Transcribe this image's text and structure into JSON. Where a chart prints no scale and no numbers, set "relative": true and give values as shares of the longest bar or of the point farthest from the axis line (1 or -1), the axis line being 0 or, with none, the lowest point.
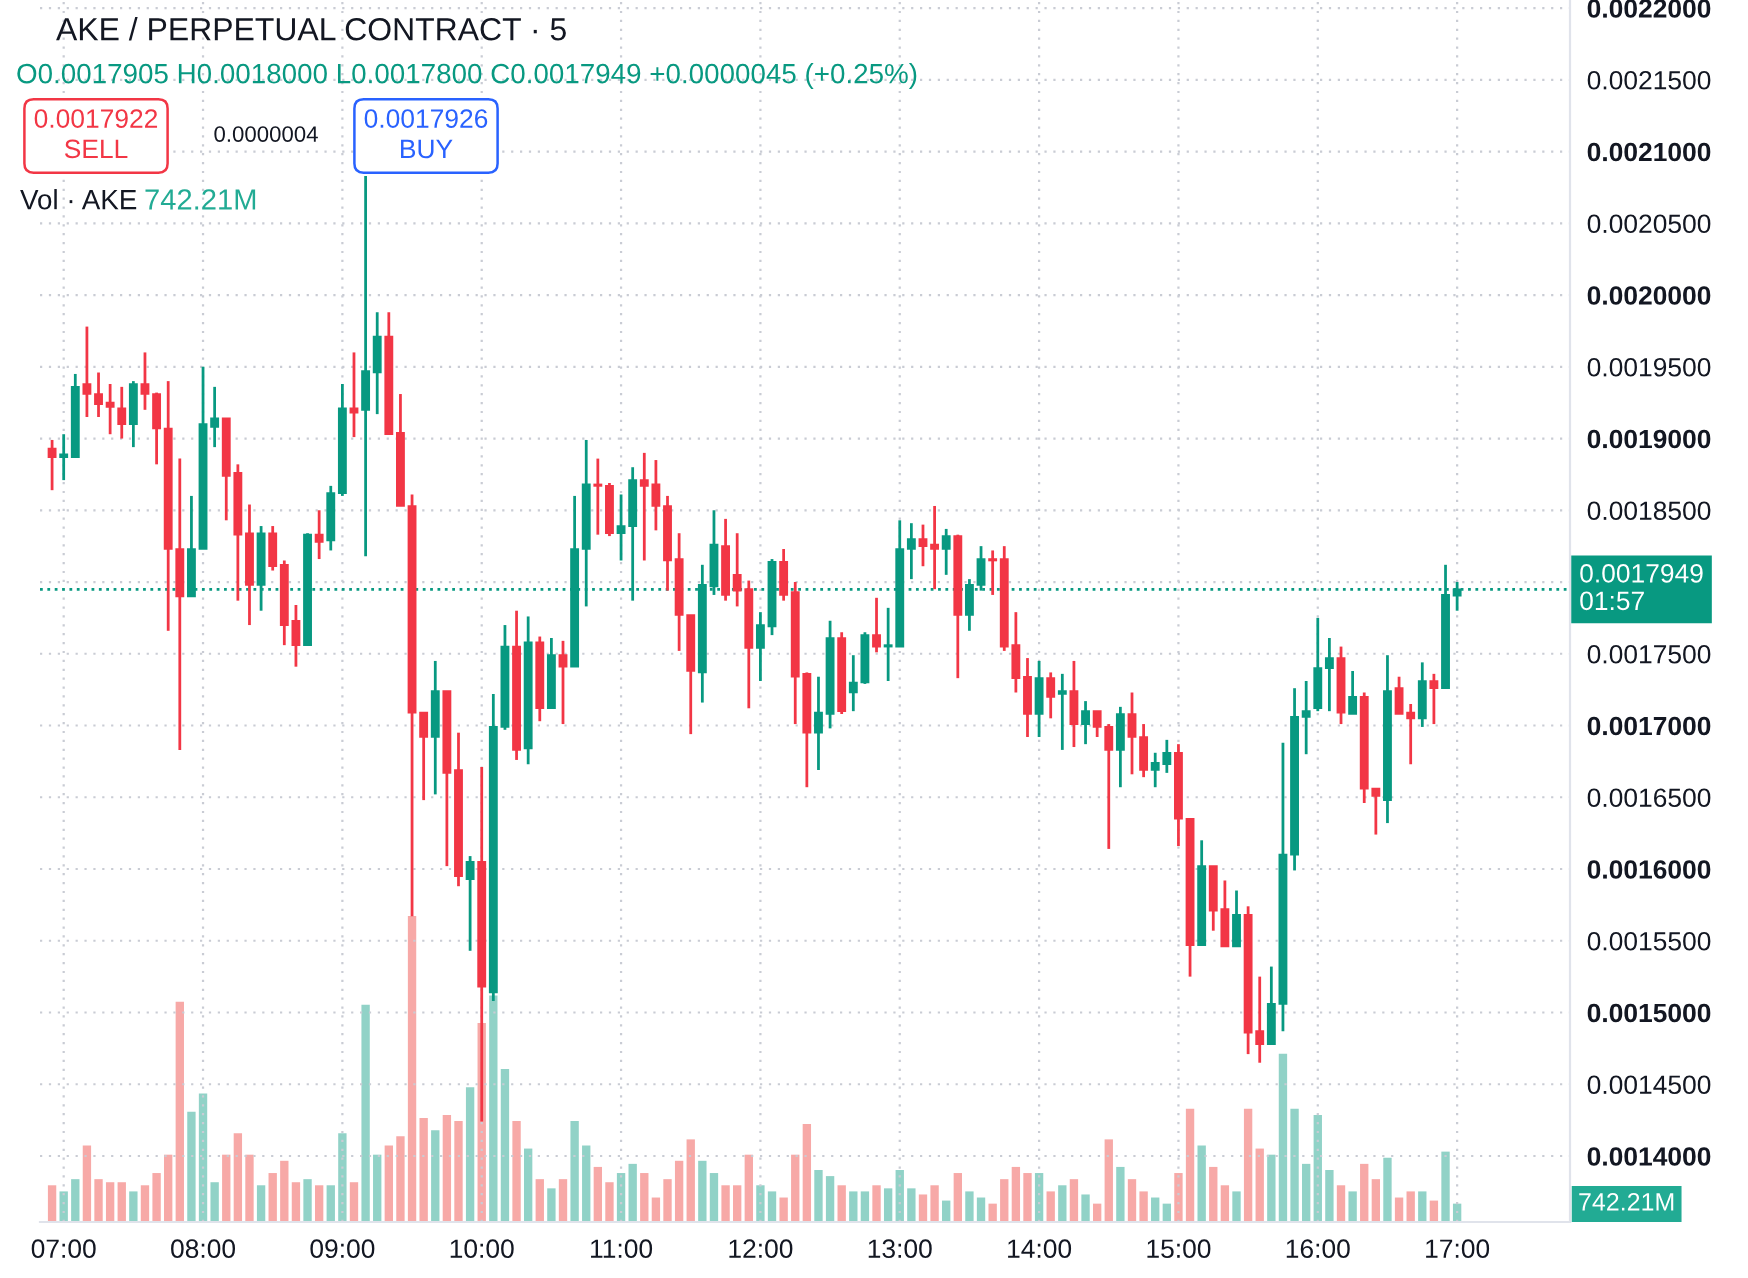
{
  "chart_data": [
    {
      "type": "candlestick",
      "title": "AKE / PERPETUAL CONTRACT · 5",
      "subtitle": "O0.0017905 H0.0018000 L0.0017800 C0.0017949 +0.0000045 (+0.25%)",
      "annotations": [
        "0.0017922\nSELL",
        "0.0000004",
        "0.0017926\nBUY"
      ],
      "x": [
        6.9167,
        7,
        7.0833,
        7.1667,
        7.25,
        7.3333,
        7.4167,
        7.5,
        7.5833,
        7.6667,
        7.75,
        7.8333,
        7.9167,
        8,
        8.0833,
        8.1667,
        8.25,
        8.3333,
        8.4167,
        8.5,
        8.5833,
        8.6667,
        8.75,
        8.8333,
        8.9167,
        9,
        9.0833,
        9.1667,
        9.25,
        9.3333,
        9.4167,
        9.5,
        9.5833,
        9.6667,
        9.75,
        9.8333,
        9.9167,
        10,
        10.0833,
        10.1667,
        10.25,
        10.3333,
        10.4167,
        10.5,
        10.5833,
        10.6667,
        10.75,
        10.8333,
        10.9167,
        11,
        11.0833,
        11.1667,
        11.25,
        11.3333,
        11.4167,
        11.5,
        11.5833,
        11.6667,
        11.75,
        11.8333,
        11.9167,
        12,
        12.0833,
        12.1667,
        12.25,
        12.3333,
        12.4167,
        12.5,
        12.5833,
        12.6667,
        12.75,
        12.8333,
        12.9167,
        13,
        13.0833,
        13.1667,
        13.25,
        13.3333,
        13.4167,
        13.5,
        13.5833,
        13.6667,
        13.75,
        13.8333,
        13.9167,
        14,
        14.0833,
        14.1667,
        14.25,
        14.3333,
        14.4167,
        14.5,
        14.5833,
        14.6667,
        14.75,
        14.8333,
        14.9167,
        15,
        15.0833,
        15.1667,
        15.25,
        15.3333,
        15.4167,
        15.5,
        15.5833,
        15.6667,
        15.75,
        15.8333,
        15.9167,
        16,
        16.0833,
        16.1667,
        16.25,
        16.3333,
        16.4167,
        16.5,
        16.5833,
        16.6667,
        16.75,
        16.8333,
        16.9167,
        17
      ],
      "ohlc": [
        [
          0.001893,
          0.001899,
          0.001864,
          0.001887
        ],
        [
          0.001887,
          0.001903,
          0.001871,
          0.001889
        ],
        [
          0.001887,
          0.001945,
          0.001887,
          0.001936
        ],
        [
          0.001938,
          0.001978,
          0.001915,
          0.001931
        ],
        [
          0.001931,
          0.001946,
          0.001915,
          0.001924
        ],
        [
          0.001925,
          0.001938,
          0.001903,
          0.001922
        ],
        [
          0.001921,
          0.001936,
          0.0019,
          0.00191
        ],
        [
          0.00191,
          0.00194,
          0.001894,
          0.001938
        ],
        [
          0.001938,
          0.00196,
          0.00192,
          0.001931
        ],
        [
          0.001931,
          0.001932,
          0.001882,
          0.001907
        ],
        [
          0.001907,
          0.00194,
          0.001766,
          0.001823
        ],
        [
          0.001823,
          0.001886,
          0.001683,
          0.00179
        ],
        [
          0.00179,
          0.00186,
          0.00179,
          0.001823
        ],
        [
          0.001823,
          0.00195,
          0.001823,
          0.00191
        ],
        [
          0.001908,
          0.001936,
          0.001894,
          0.001914
        ],
        [
          0.001914,
          0.001914,
          0.001843,
          0.001874
        ],
        [
          0.001876,
          0.001882,
          0.001787,
          0.001833
        ],
        [
          0.001834,
          0.001854,
          0.00177,
          0.001798
        ],
        [
          0.001798,
          0.001839,
          0.00178,
          0.001834
        ],
        [
          0.001834,
          0.001839,
          0.001808,
          0.001811
        ],
        [
          0.001812,
          0.001815,
          0.001756,
          0.00177
        ],
        [
          0.001773,
          0.001784,
          0.001741,
          0.001756
        ],
        [
          0.001756,
          0.001834,
          0.001756,
          0.001833
        ],
        [
          0.001833,
          0.00185,
          0.001816,
          0.001828
        ],
        [
          0.001829,
          0.001867,
          0.001822,
          0.001862
        ],
        [
          0.001862,
          0.001938,
          0.00186,
          0.001921
        ],
        [
          0.001921,
          0.00196,
          0.001901,
          0.001918
        ],
        [
          0.00192,
          0.002083,
          0.001818,
          0.001947
        ],
        [
          0.001946,
          0.001988,
          0.001917,
          0.001971
        ],
        [
          0.001971,
          0.001988,
          0.001903,
          0.001903
        ],
        [
          0.001904,
          0.001931,
          0.001853,
          0.001853
        ],
        [
          0.001853,
          0.001861,
          0.001567,
          0.001709
        ],
        [
          0.001709,
          0.001709,
          0.001648,
          0.001692
        ],
        [
          0.001692,
          0.001745,
          0.001652,
          0.001724
        ],
        [
          0.001724,
          0.001724,
          0.001602,
          0.001667
        ],
        [
          0.001669,
          0.001695,
          0.001588,
          0.001595
        ],
        [
          0.001593,
          0.001609,
          0.001543,
          0.001605
        ],
        [
          0.001605,
          0.001671,
          0.001424,
          0.001518
        ],
        [
          0.001514,
          0.001722,
          0.001508,
          0.001699
        ],
        [
          0.001699,
          0.00177,
          0.001697,
          0.001755
        ],
        [
          0.001755,
          0.00178,
          0.001676,
          0.001683
        ],
        [
          0.001684,
          0.001776,
          0.001673,
          0.001758
        ],
        [
          0.001758,
          0.001762,
          0.001703,
          0.001712
        ],
        [
          0.001712,
          0.001761,
          0.001712,
          0.001749
        ],
        [
          0.001749,
          0.001759,
          0.001701,
          0.001741
        ],
        [
          0.001741,
          0.00186,
          0.001741,
          0.001823
        ],
        [
          0.001823,
          0.001899,
          0.001783,
          0.001868
        ],
        [
          0.001868,
          0.001886,
          0.001833,
          0.001867
        ],
        [
          0.001867,
          0.001869,
          0.001832,
          0.001834
        ],
        [
          0.001834,
          0.001861,
          0.001815,
          0.001839
        ],
        [
          0.001839,
          0.00188,
          0.001787,
          0.001871
        ],
        [
          0.001871,
          0.00189,
          0.001815,
          0.001867
        ],
        [
          0.001868,
          0.001885,
          0.001836,
          0.001853
        ],
        [
          0.001853,
          0.00186,
          0.001794,
          0.001815
        ],
        [
          0.001816,
          0.001834,
          0.001752,
          0.001777
        ],
        [
          0.001777,
          0.001777,
          0.001694,
          0.001738
        ],
        [
          0.001737,
          0.001812,
          0.001716,
          0.001798
        ],
        [
          0.001797,
          0.00185,
          0.001791,
          0.001826
        ],
        [
          0.001825,
          0.001844,
          0.001787,
          0.001791
        ],
        [
          0.001805,
          0.001834,
          0.001783,
          0.001794
        ],
        [
          0.001795,
          0.001801,
          0.001712,
          0.001754
        ],
        [
          0.001754,
          0.001779,
          0.001731,
          0.00177
        ],
        [
          0.001769,
          0.001816,
          0.001763,
          0.001814
        ],
        [
          0.001814,
          0.001823,
          0.001787,
          0.001791
        ],
        [
          0.001793,
          0.0018,
          0.001701,
          0.001734
        ],
        [
          0.001736,
          0.001737,
          0.001657,
          0.001695
        ],
        [
          0.001695,
          0.001734,
          0.001669,
          0.001709
        ],
        [
          0.001708,
          0.001773,
          0.001698,
          0.001761
        ],
        [
          0.001761,
          0.001765,
          0.001708,
          0.00171
        ],
        [
          0.001723,
          0.001749,
          0.00171,
          0.00173
        ],
        [
          0.00173,
          0.001765,
          0.001729,
          0.001763
        ],
        [
          0.001763,
          0.001789,
          0.001751,
          0.001755
        ],
        [
          0.001755,
          0.001782,
          0.001731,
          0.001756
        ],
        [
          0.001755,
          0.001843,
          0.001755,
          0.001823
        ],
        [
          0.001823,
          0.001841,
          0.001802,
          0.00183
        ],
        [
          0.00183,
          0.00184,
          0.001811,
          0.001825
        ],
        [
          0.001826,
          0.001853,
          0.001795,
          0.001823
        ],
        [
          0.001823,
          0.001837,
          0.001805,
          0.001832
        ],
        [
          0.001832,
          0.001833,
          0.001733,
          0.001777
        ],
        [
          0.001777,
          0.001802,
          0.001766,
          0.001798
        ],
        [
          0.001798,
          0.001825,
          0.001794,
          0.001816
        ],
        [
          0.001816,
          0.001822,
          0.001791,
          0.001815
        ],
        [
          0.001816,
          0.001825,
          0.001752,
          0.001755
        ],
        [
          0.001756,
          0.001779,
          0.001723,
          0.001733
        ],
        [
          0.001734,
          0.001747,
          0.001692,
          0.001708
        ],
        [
          0.001708,
          0.001745,
          0.001692,
          0.001733
        ],
        [
          0.001733,
          0.001737,
          0.001705,
          0.00172
        ],
        [
          0.001722,
          0.001736,
          0.001683,
          0.001724
        ],
        [
          0.001724,
          0.001745,
          0.001685,
          0.001701
        ],
        [
          0.001701,
          0.001717,
          0.001687,
          0.00171
        ],
        [
          0.00171,
          0.00171,
          0.001692,
          0.001699
        ],
        [
          0.001699,
          0.001701,
          0.001614,
          0.001683
        ],
        [
          0.001683,
          0.001713,
          0.001657,
          0.001708
        ],
        [
          0.001708,
          0.001723,
          0.001666,
          0.001692
        ],
        [
          0.001692,
          0.001701,
          0.001664,
          0.001669
        ],
        [
          0.001669,
          0.001681,
          0.001657,
          0.001674
        ],
        [
          0.001673,
          0.00169,
          0.001667,
          0.001681
        ],
        [
          0.001681,
          0.001687,
          0.001616,
          0.001635
        ],
        [
          0.001635,
          0.001635,
          0.001525,
          0.001547
        ],
        [
          0.001547,
          0.00162,
          0.001547,
          0.001602
        ],
        [
          0.001602,
          0.001602,
          0.001557,
          0.001571
        ],
        [
          0.001572,
          0.001592,
          0.001546,
          0.001546
        ],
        [
          0.001546,
          0.001585,
          0.001546,
          0.001568
        ],
        [
          0.001568,
          0.001574,
          0.001471,
          0.001486
        ],
        [
          0.001487,
          0.001525,
          0.001465,
          0.001478
        ],
        [
          0.001478,
          0.001532,
          0.001478,
          0.001506
        ],
        [
          0.001506,
          0.001688,
          0.001487,
          0.00161
        ],
        [
          0.00161,
          0.001726,
          0.001599,
          0.001706
        ],
        [
          0.001706,
          0.001731,
          0.00168,
          0.00171
        ],
        [
          0.001712,
          0.001775,
          0.00171,
          0.00174
        ],
        [
          0.00174,
          0.001761,
          0.00171,
          0.001747
        ],
        [
          0.001747,
          0.001755,
          0.001701,
          0.001709
        ],
        [
          0.001708,
          0.001738,
          0.001708,
          0.00172
        ],
        [
          0.00172,
          0.001723,
          0.001646,
          0.001656
        ],
        [
          0.001656,
          0.001656,
          0.001624,
          0.001651
        ],
        [
          0.001648,
          0.001749,
          0.001632,
          0.001724
        ],
        [
          0.001726,
          0.001734,
          0.001708,
          0.001708
        ],
        [
          0.001709,
          0.001715,
          0.001673,
          0.001705
        ],
        [
          0.001705,
          0.001744,
          0.001699,
          0.001731
        ],
        [
          0.001731,
          0.001736,
          0.001701,
          0.001726
        ],
        [
          0.001726,
          0.001812,
          0.001726,
          0.001791
        ],
        [
          0.0017905,
          0.0018,
          0.00178,
          0.0017949
        ]
      ],
      "colors": [
        "#f23645",
        "#089981",
        "#089981",
        "#f23645",
        "#f23645",
        "#f23645",
        "#f23645",
        "#089981",
        "#f23645",
        "#f23645",
        "#f23645",
        "#f23645",
        "#089981",
        "#089981",
        "#089981",
        "#f23645",
        "#f23645",
        "#f23645",
        "#089981",
        "#f23645",
        "#f23645",
        "#f23645",
        "#089981",
        "#f23645",
        "#089981",
        "#089981",
        "#f23645",
        "#089981",
        "#089981",
        "#f23645",
        "#f23645",
        "#f23645",
        "#f23645",
        "#089981",
        "#f23645",
        "#f23645",
        "#089981",
        "#f23645",
        "#089981",
        "#089981",
        "#f23645",
        "#089981",
        "#f23645",
        "#089981",
        "#f23645",
        "#089981",
        "#089981",
        "#f23645",
        "#f23645",
        "#089981",
        "#089981",
        "#f23645",
        "#f23645",
        "#f23645",
        "#f23645",
        "#f23645",
        "#089981",
        "#089981",
        "#f23645",
        "#f23645",
        "#f23645",
        "#089981",
        "#089981",
        "#f23645",
        "#f23645",
        "#f23645",
        "#089981",
        "#089981",
        "#f23645",
        "#089981",
        "#089981",
        "#f23645",
        "#089981",
        "#089981",
        "#089981",
        "#f23645",
        "#f23645",
        "#089981",
        "#f23645",
        "#089981",
        "#089981",
        "#f23645",
        "#f23645",
        "#f23645",
        "#f23645",
        "#089981",
        "#f23645",
        "#089981",
        "#f23645",
        "#089981",
        "#f23645",
        "#f23645",
        "#089981",
        "#f23645",
        "#f23645",
        "#089981",
        "#089981",
        "#f23645",
        "#f23645",
        "#089981",
        "#f23645",
        "#f23645",
        "#089981",
        "#f23645",
        "#f23645",
        "#089981",
        "#089981",
        "#089981",
        "#089981",
        "#089981",
        "#089981",
        "#f23645",
        "#089981",
        "#f23645",
        "#f23645",
        "#089981",
        "#f23645",
        "#f23645",
        "#089981",
        "#f23645",
        "#089981",
        "#089981"
      ],
      "xlim": [
        6.83,
        17.81
      ],
      "ylim": [
        0.001354,
        0.0022056
      ],
      "xticks": [
        {
          "value": 7,
          "label": "07:00"
        },
        {
          "value": 8,
          "label": "08:00"
        },
        {
          "value": 9,
          "label": "09:00"
        },
        {
          "value": 10,
          "label": "10:00"
        },
        {
          "value": 11,
          "label": "11:00"
        },
        {
          "value": 12,
          "label": "12:00"
        },
        {
          "value": 13,
          "label": "13:00"
        },
        {
          "value": 14,
          "label": "14:00"
        },
        {
          "value": 15,
          "label": "15:00"
        },
        {
          "value": 16,
          "label": "16:00"
        },
        {
          "value": 17,
          "label": "17:00"
        }
      ],
      "yticks": [
        {
          "value": 0.0014,
          "label": "0.0014000"
        },
        {
          "value": 0.00145,
          "label": "0.0014500"
        },
        {
          "value": 0.0015,
          "label": "0.0015000"
        },
        {
          "value": 0.00155,
          "label": "0.0015500"
        },
        {
          "value": 0.0016,
          "label": "0.0016000"
        },
        {
          "value": 0.00165,
          "label": "0.0016500"
        },
        {
          "value": 0.0017,
          "label": "0.0017000"
        },
        {
          "value": 0.00175,
          "label": "0.0017500"
        },
        {
          "value": 0.0018,
          "label": null
        },
        {
          "value": 0.00185,
          "label": "0.0018500"
        },
        {
          "value": 0.0019,
          "label": "0.0019000"
        },
        {
          "value": 0.00195,
          "label": "0.0019500"
        },
        {
          "value": 0.002,
          "label": "0.0020000"
        },
        {
          "value": 0.00205,
          "label": "0.0020500"
        },
        {
          "value": 0.0021,
          "label": "0.0021000"
        },
        {
          "value": 0.00215,
          "label": "0.0021500"
        },
        {
          "value": 0.0022,
          "label": "0.0022000"
        }
      ],
      "ref_lines": [
        {
          "axis": "y",
          "value": 0.0017949,
          "label": "0.0017949\n01:57",
          "color": "#089981",
          "line_style": "dotted"
        }
      ],
      "grid": true
    },
    {
      "type": "bar",
      "relative": true,
      "annotations": [
        "Vol · AKE",
        "742.21M",
        "742.21M"
      ],
      "x": [
        6.9167,
        7,
        7.0833,
        7.1667,
        7.25,
        7.3333,
        7.4167,
        7.5,
        7.5833,
        7.6667,
        7.75,
        7.8333,
        7.9167,
        8,
        8.0833,
        8.1667,
        8.25,
        8.3333,
        8.4167,
        8.5,
        8.5833,
        8.6667,
        8.75,
        8.8333,
        8.9167,
        9,
        9.0833,
        9.1667,
        9.25,
        9.3333,
        9.4167,
        9.5,
        9.5833,
        9.6667,
        9.75,
        9.8333,
        9.9167,
        10,
        10.0833,
        10.1667,
        10.25,
        10.3333,
        10.4167,
        10.5,
        10.5833,
        10.6667,
        10.75,
        10.8333,
        10.9167,
        11,
        11.0833,
        11.1667,
        11.25,
        11.3333,
        11.4167,
        11.5,
        11.5833,
        11.6667,
        11.75,
        11.8333,
        11.9167,
        12,
        12.0833,
        12.1667,
        12.25,
        12.3333,
        12.4167,
        12.5,
        12.5833,
        12.6667,
        12.75,
        12.8333,
        12.9167,
        13,
        13.0833,
        13.1667,
        13.25,
        13.3333,
        13.4167,
        13.5,
        13.5833,
        13.6667,
        13.75,
        13.8333,
        13.9167,
        14,
        14.0833,
        14.1667,
        14.25,
        14.3333,
        14.4167,
        14.5,
        14.5833,
        14.6667,
        14.75,
        14.8333,
        14.9167,
        15,
        15.0833,
        15.1667,
        15.25,
        15.3333,
        15.4167,
        15.5,
        15.5833,
        15.6667,
        15.75,
        15.8333,
        15.9167,
        16,
        16.0833,
        16.1667,
        16.25,
        16.3333,
        16.4167,
        16.5,
        16.5833,
        16.6667,
        16.75,
        16.8333,
        16.9167,
        17
      ],
      "values": [
        0.12,
        0.1,
        0.14,
        0.25,
        0.14,
        0.13,
        0.13,
        0.1,
        0.12,
        0.16,
        0.22,
        0.72,
        0.36,
        0.42,
        0.13,
        0.22,
        0.29,
        0.22,
        0.12,
        0.16,
        0.2,
        0.13,
        0.14,
        0.12,
        0.12,
        0.29,
        0.13,
        0.71,
        0.22,
        0.25,
        0.28,
        1,
        0.34,
        0.3,
        0.35,
        0.33,
        0.44,
        0.65,
        0.74,
        0.5,
        0.33,
        0.24,
        0.14,
        0.11,
        0.14,
        0.33,
        0.25,
        0.18,
        0.13,
        0.16,
        0.19,
        0.16,
        0.08,
        0.14,
        0.2,
        0.27,
        0.2,
        0.16,
        0.12,
        0.12,
        0.22,
        0.12,
        0.1,
        0.08,
        0.22,
        0.32,
        0.17,
        0.15,
        0.12,
        0.1,
        0.1,
        0.12,
        0.11,
        0.17,
        0.11,
        0.09,
        0.12,
        0.07,
        0.16,
        0.1,
        0.08,
        0.06,
        0.14,
        0.18,
        0.16,
        0.16,
        0.1,
        0.12,
        0.14,
        0.09,
        0.06,
        0.27,
        0.18,
        0.14,
        0.1,
        0.08,
        0.06,
        0.16,
        0.37,
        0.25,
        0.18,
        0.12,
        0.1,
        0.37,
        0.24,
        0.22,
        0.55,
        0.37,
        0.19,
        0.35,
        0.17,
        0.12,
        0.1,
        0.19,
        0.14,
        0.21,
        0.08,
        0.1,
        0.1,
        0.07,
        0.23,
        0.06
      ],
      "colors": [
        "#f7a9a7",
        "#91d2c7",
        "#91d2c7",
        "#f7a9a7",
        "#f7a9a7",
        "#f7a9a7",
        "#f7a9a7",
        "#91d2c7",
        "#f7a9a7",
        "#f7a9a7",
        "#f7a9a7",
        "#f7a9a7",
        "#91d2c7",
        "#91d2c7",
        "#91d2c7",
        "#f7a9a7",
        "#f7a9a7",
        "#f7a9a7",
        "#91d2c7",
        "#f7a9a7",
        "#f7a9a7",
        "#f7a9a7",
        "#91d2c7",
        "#f7a9a7",
        "#91d2c7",
        "#91d2c7",
        "#f7a9a7",
        "#91d2c7",
        "#91d2c7",
        "#f7a9a7",
        "#f7a9a7",
        "#f7a9a7",
        "#f7a9a7",
        "#91d2c7",
        "#f7a9a7",
        "#f7a9a7",
        "#91d2c7",
        "#f7a9a7",
        "#91d2c7",
        "#91d2c7",
        "#f7a9a7",
        "#91d2c7",
        "#f7a9a7",
        "#91d2c7",
        "#f7a9a7",
        "#91d2c7",
        "#91d2c7",
        "#f7a9a7",
        "#f7a9a7",
        "#91d2c7",
        "#91d2c7",
        "#f7a9a7",
        "#f7a9a7",
        "#f7a9a7",
        "#f7a9a7",
        "#f7a9a7",
        "#91d2c7",
        "#91d2c7",
        "#f7a9a7",
        "#f7a9a7",
        "#f7a9a7",
        "#91d2c7",
        "#91d2c7",
        "#f7a9a7",
        "#f7a9a7",
        "#f7a9a7",
        "#91d2c7",
        "#91d2c7",
        "#f7a9a7",
        "#91d2c7",
        "#91d2c7",
        "#f7a9a7",
        "#91d2c7",
        "#91d2c7",
        "#91d2c7",
        "#f7a9a7",
        "#f7a9a7",
        "#91d2c7",
        "#f7a9a7",
        "#91d2c7",
        "#91d2c7",
        "#f7a9a7",
        "#f7a9a7",
        "#f7a9a7",
        "#f7a9a7",
        "#91d2c7",
        "#f7a9a7",
        "#91d2c7",
        "#f7a9a7",
        "#91d2c7",
        "#f7a9a7",
        "#f7a9a7",
        "#91d2c7",
        "#f7a9a7",
        "#f7a9a7",
        "#91d2c7",
        "#91d2c7",
        "#f7a9a7",
        "#f7a9a7",
        "#91d2c7",
        "#f7a9a7",
        "#f7a9a7",
        "#91d2c7",
        "#f7a9a7",
        "#f7a9a7",
        "#91d2c7",
        "#91d2c7",
        "#91d2c7",
        "#91d2c7",
        "#91d2c7",
        "#91d2c7",
        "#f7a9a7",
        "#91d2c7",
        "#f7a9a7",
        "#f7a9a7",
        "#91d2c7",
        "#f7a9a7",
        "#f7a9a7",
        "#91d2c7",
        "#f7a9a7",
        "#91d2c7",
        "#91d2c7"
      ],
      "xlim": [
        6.83,
        17.81
      ]
    }
  ]
}
